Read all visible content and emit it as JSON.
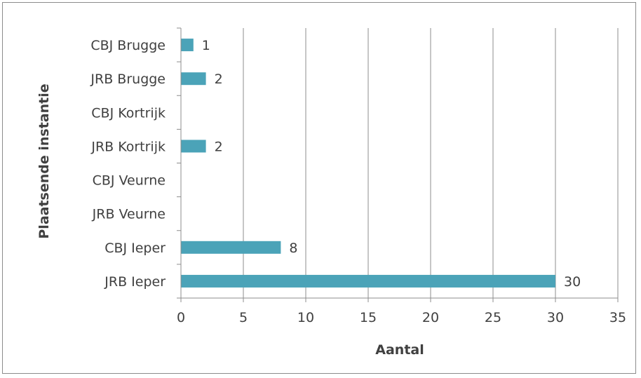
{
  "chart_data": {
    "type": "bar",
    "orientation": "horizontal",
    "categories": [
      "CBJ Brugge",
      "JRB Brugge",
      "CBJ Kortrijk",
      "JRB Kortrijk",
      "CBJ Veurne",
      "JRB Veurne",
      "CBJ Ieper",
      "JRB Ieper"
    ],
    "values": [
      1,
      2,
      null,
      2,
      null,
      null,
      8,
      30
    ],
    "xlabel": "Aantal",
    "ylabel": "Plaatsende instantie",
    "xlim": [
      0,
      35
    ],
    "xticks": [
      0,
      5,
      10,
      15,
      20,
      25,
      30,
      35
    ],
    "grid": "vertical",
    "legend": "none",
    "bar_color": "#4BA3B8"
  }
}
